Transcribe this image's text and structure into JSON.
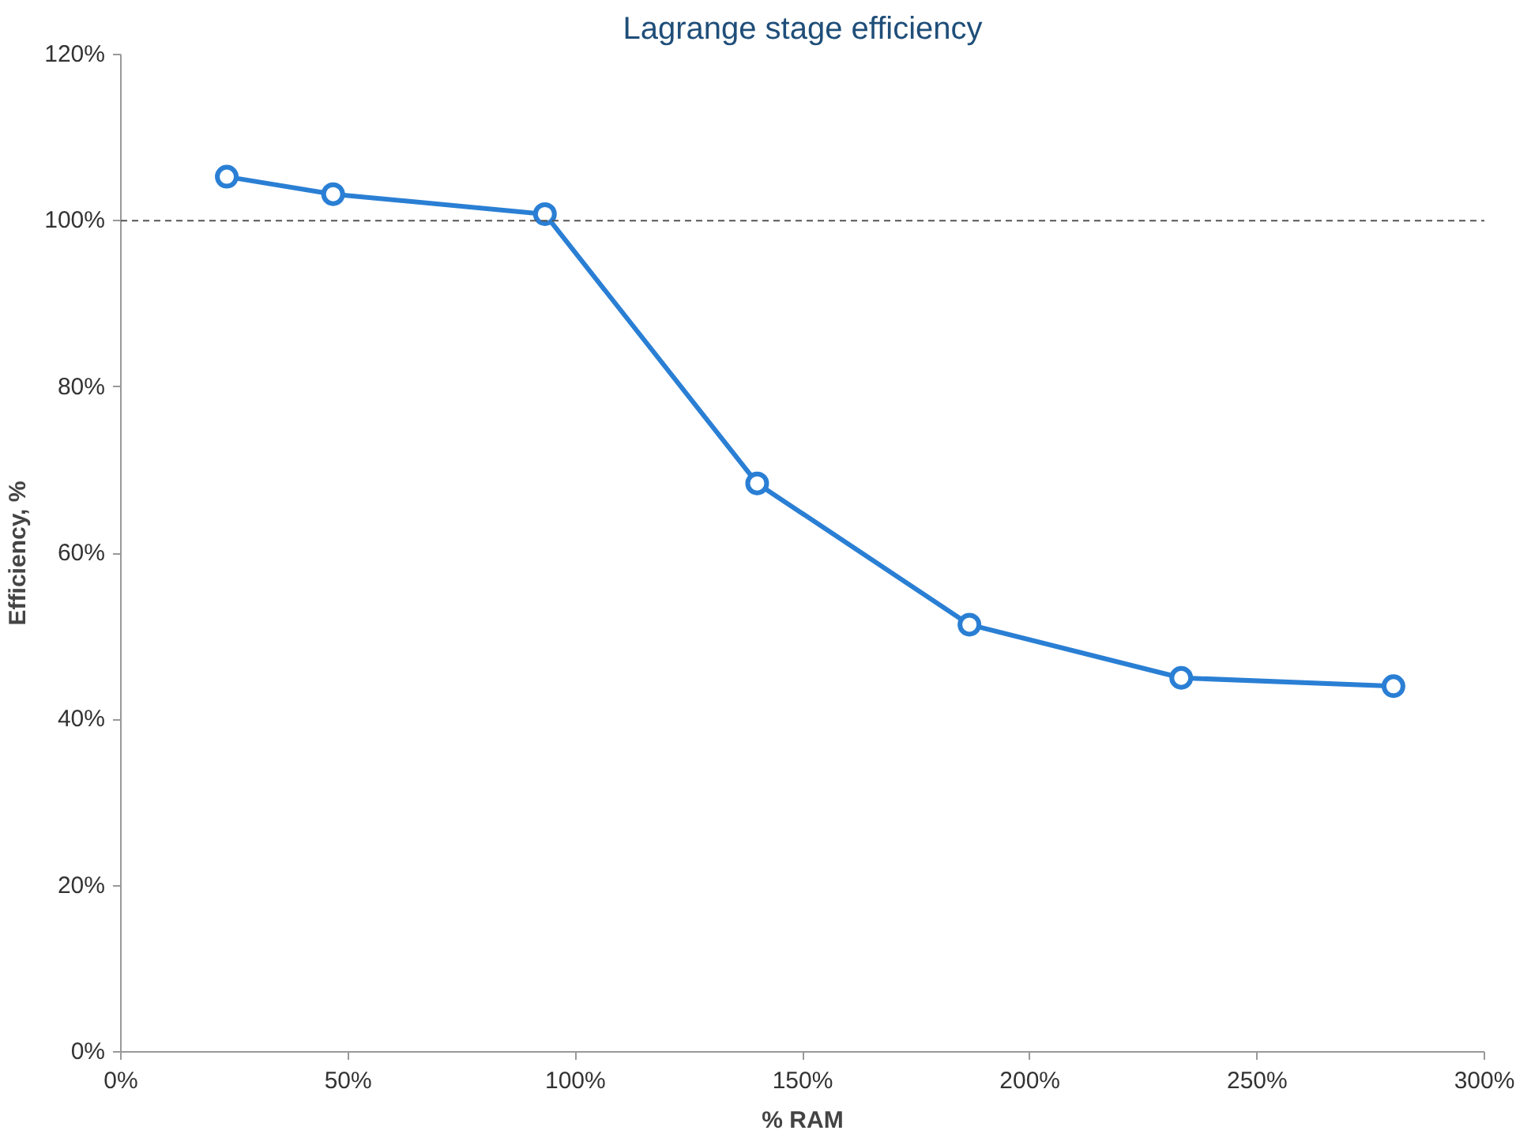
{
  "chart_data": {
    "type": "line",
    "title": "Lagrange stage efficiency",
    "xlabel": "% RAM",
    "ylabel": "Efficiency, %",
    "x": [
      23.3,
      46.7,
      93.3,
      140,
      186.7,
      233.3,
      280
    ],
    "series": [
      {
        "color": "#2a7fd4",
        "values": [
          105.3,
          103.2,
          100.8,
          68.4,
          51.4,
          45.0,
          44.0
        ]
      }
    ],
    "xlim": [
      0,
      300
    ],
    "xticks": [
      {
        "value": 0,
        "label": "0%"
      },
      {
        "value": 50,
        "label": "50%"
      },
      {
        "value": 100,
        "label": "100%"
      },
      {
        "value": 150,
        "label": "150%"
      },
      {
        "value": 200,
        "label": "200%"
      },
      {
        "value": 250,
        "label": "250%"
      },
      {
        "value": 300,
        "label": "300%"
      }
    ],
    "ylim": [
      0,
      120
    ],
    "yticks": [
      {
        "value": 0,
        "label": "0%"
      },
      {
        "value": 20,
        "label": "20%"
      },
      {
        "value": 40,
        "label": "40%"
      },
      {
        "value": 60,
        "label": "60%"
      },
      {
        "value": 80,
        "label": "80%"
      },
      {
        "value": 100,
        "label": "100%"
      },
      {
        "value": 120,
        "label": "120%"
      }
    ],
    "ref_lines": [
      {
        "axis": "y",
        "value": 100,
        "color": "#555555",
        "line_style": "dashed"
      }
    ],
    "grid": false,
    "marker": "circle",
    "line_style": "solid"
  }
}
